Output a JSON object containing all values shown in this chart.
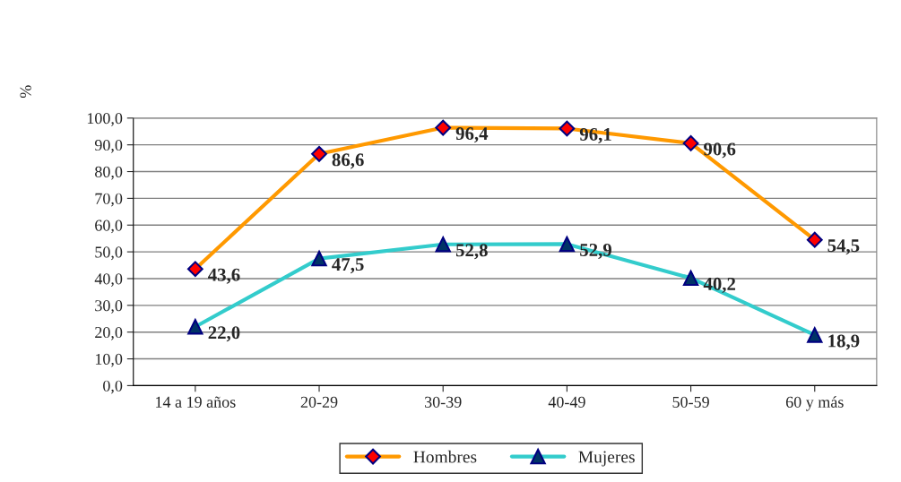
{
  "chart_data": {
    "type": "line",
    "ylabel": "%",
    "categories": [
      "14 a 19 años",
      "20-29",
      "30-39",
      "40-49",
      "50-59",
      "60 y más"
    ],
    "series": [
      {
        "name": "Hombres",
        "color": "#ff9900",
        "marker": "diamond",
        "values": [
          43.6,
          86.6,
          96.4,
          96.1,
          90.6,
          54.5
        ],
        "value_labels": [
          "43,6",
          "86,6",
          "96,4",
          "96,1",
          "90,6",
          "54,5"
        ]
      },
      {
        "name": "Mujeres",
        "color": "#33cccc",
        "marker": "triangle",
        "values": [
          22.0,
          47.5,
          52.8,
          52.9,
          40.2,
          18.9
        ],
        "value_labels": [
          "22,0",
          "47,5",
          "52,8",
          "52,9",
          "40,2",
          "18,9"
        ]
      }
    ],
    "ylim": [
      0,
      100
    ],
    "yticks": [
      {
        "value": 0,
        "label": "0,0"
      },
      {
        "value": 10,
        "label": "10,0"
      },
      {
        "value": 20,
        "label": "20,0"
      },
      {
        "value": 30,
        "label": "30,0"
      },
      {
        "value": 40,
        "label": "40,0"
      },
      {
        "value": 50,
        "label": "50,0"
      },
      {
        "value": 60,
        "label": "60,0"
      },
      {
        "value": 70,
        "label": "70,0"
      },
      {
        "value": 80,
        "label": "80,0"
      },
      {
        "value": 90,
        "label": "90,0"
      },
      {
        "value": 100,
        "label": "100,0"
      }
    ],
    "grid": "y",
    "legend": "bottom"
  }
}
